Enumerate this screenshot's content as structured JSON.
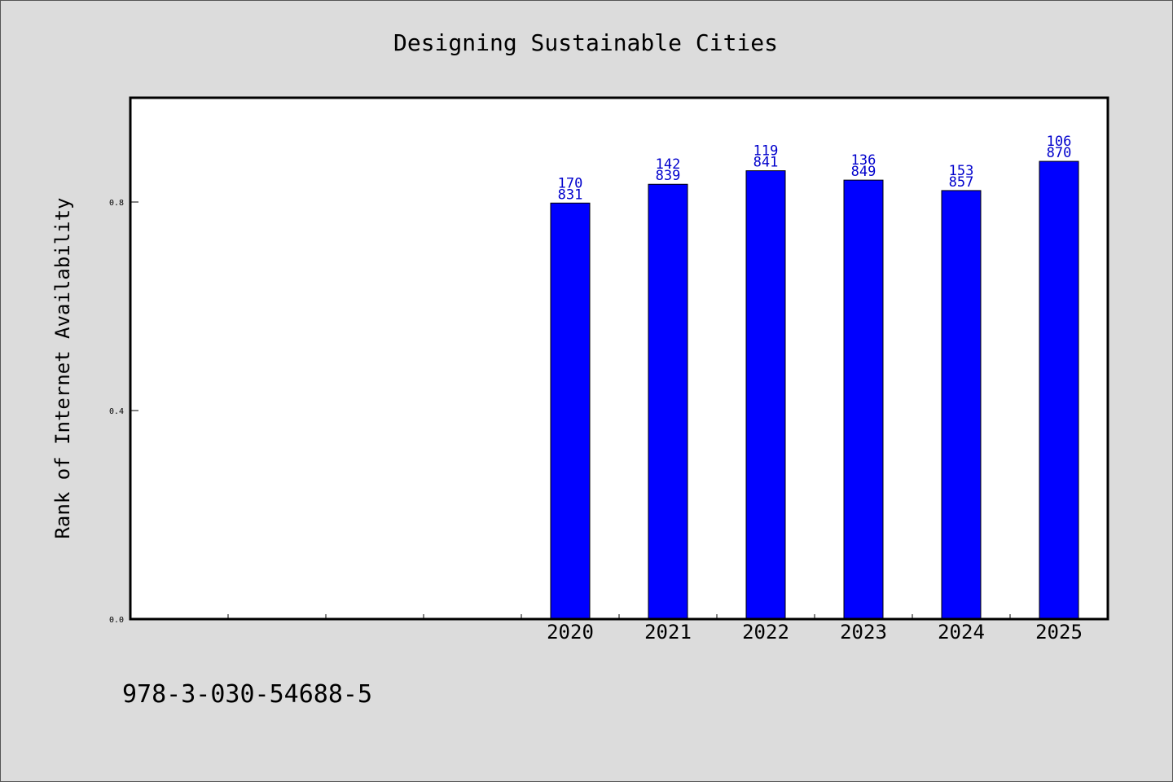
{
  "chart_data": {
    "type": "bar",
    "title": "Designing Sustainable Cities",
    "ylabel": "Rank of Internet Availability",
    "xlabel": "",
    "ylim": [
      0,
      1.0
    ],
    "y_ticks": [
      "0.0",
      "0.4",
      "0.8"
    ],
    "y_tick_values": [
      0.0,
      0.4,
      0.8
    ],
    "categories": [
      "",
      "",
      "",
      "",
      "2020",
      "2021",
      "2022",
      "2023",
      "2024",
      "2025"
    ],
    "values": [
      null,
      null,
      null,
      null,
      0.798,
      0.834,
      0.86,
      0.842,
      0.822,
      0.878
    ],
    "data_labels": [
      [
        "",
        ""
      ],
      [
        "",
        ""
      ],
      [
        "",
        ""
      ],
      [
        "",
        ""
      ],
      [
        "170",
        "831"
      ],
      [
        "142",
        "839"
      ],
      [
        "119",
        "841"
      ],
      [
        "136",
        "849"
      ],
      [
        "153",
        "857"
      ],
      [
        "106",
        "870"
      ]
    ],
    "bar_color": "#0000ff",
    "label_color": "#0000cc",
    "grid": false,
    "legend": "none"
  },
  "footer": {
    "isbn": "978-3-030-54688-5"
  }
}
